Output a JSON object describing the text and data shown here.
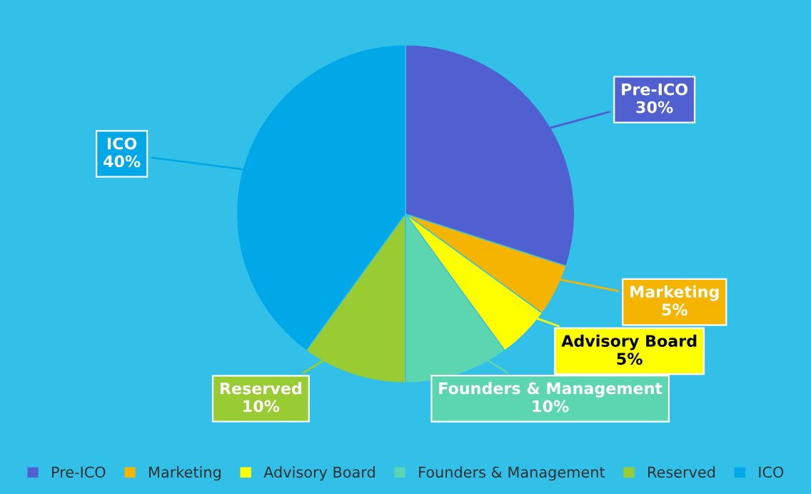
{
  "chart_data": {
    "type": "pie",
    "categories": [
      "Pre-ICO",
      "Marketing",
      "Advisory Board",
      "Founders & Management",
      "Reserved",
      "ICO"
    ],
    "values": [
      30,
      5,
      5,
      10,
      10,
      40
    ],
    "value_labels": [
      "30%",
      "5%",
      "5%",
      "10%",
      "10%",
      "40%"
    ],
    "colors": [
      "#5060d0",
      "#f5b400",
      "#ffff00",
      "#5cd6b0",
      "#99cc33",
      "#00a8e8"
    ],
    "legend": "bottom"
  }
}
